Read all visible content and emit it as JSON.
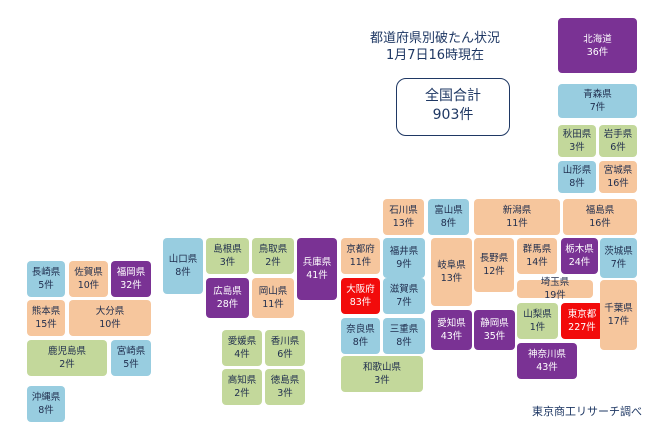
{
  "title_line1": "都道府県別破たん状況",
  "title_line2": "1月7日16時現在",
  "total_label": "全国合計",
  "total_value": "903件",
  "source": "東京商工リサーチ調べ",
  "tier_colors": {
    "tier1": "#98cde0",
    "tier2": "#c3d89b",
    "tier3": "#f6c69d",
    "tier4": "#7a3294",
    "tier5": "#f20b0b"
  },
  "prefectures": [
    {
      "name": "北海道",
      "count": "36件",
      "tier": "tier4"
    },
    {
      "name": "青森県",
      "count": "7件",
      "tier": "tier1"
    },
    {
      "name": "秋田県",
      "count": "3件",
      "tier": "tier2"
    },
    {
      "name": "岩手県",
      "count": "6件",
      "tier": "tier2"
    },
    {
      "name": "山形県",
      "count": "8件",
      "tier": "tier1"
    },
    {
      "name": "宮城県",
      "count": "16件",
      "tier": "tier3"
    },
    {
      "name": "福島県",
      "count": "16件",
      "tier": "tier3"
    },
    {
      "name": "新潟県",
      "count": "11件",
      "tier": "tier3"
    },
    {
      "name": "石川県",
      "count": "13件",
      "tier": "tier3"
    },
    {
      "name": "富山県",
      "count": "8件",
      "tier": "tier1"
    },
    {
      "name": "栃木県",
      "count": "24件",
      "tier": "tier4"
    },
    {
      "name": "茨城県",
      "count": "7件",
      "tier": "tier1"
    },
    {
      "name": "群馬県",
      "count": "14件",
      "tier": "tier3"
    },
    {
      "name": "埼玉県",
      "count": "19件",
      "tier": "tier3"
    },
    {
      "name": "長野県",
      "count": "12件",
      "tier": "tier3"
    },
    {
      "name": "岐阜県",
      "count": "13件",
      "tier": "tier3"
    },
    {
      "name": "福井県",
      "count": "9件",
      "tier": "tier1"
    },
    {
      "name": "京都府",
      "count": "11件",
      "tier": "tier3"
    },
    {
      "name": "兵庫県",
      "count": "41件",
      "tier": "tier4"
    },
    {
      "name": "島根県",
      "count": "3件",
      "tier": "tier2"
    },
    {
      "name": "鳥取県",
      "count": "2件",
      "tier": "tier2"
    },
    {
      "name": "山口県",
      "count": "8件",
      "tier": "tier1"
    },
    {
      "name": "広島県",
      "count": "28件",
      "tier": "tier4"
    },
    {
      "name": "岡山県",
      "count": "11件",
      "tier": "tier3"
    },
    {
      "name": "大阪府",
      "count": "83件",
      "tier": "tier5"
    },
    {
      "name": "滋賀県",
      "count": "7件",
      "tier": "tier1"
    },
    {
      "name": "山梨県",
      "count": "1件",
      "tier": "tier2"
    },
    {
      "name": "東京都",
      "count": "227件",
      "tier": "tier5"
    },
    {
      "name": "千葉県",
      "count": "17件",
      "tier": "tier3"
    },
    {
      "name": "奈良県",
      "count": "8件",
      "tier": "tier1"
    },
    {
      "name": "三重県",
      "count": "8件",
      "tier": "tier1"
    },
    {
      "name": "愛知県",
      "count": "43件",
      "tier": "tier4"
    },
    {
      "name": "静岡県",
      "count": "35件",
      "tier": "tier4"
    },
    {
      "name": "神奈川県",
      "count": "43件",
      "tier": "tier4"
    },
    {
      "name": "和歌山県",
      "count": "3件",
      "tier": "tier2"
    },
    {
      "name": "愛媛県",
      "count": "4件",
      "tier": "tier2"
    },
    {
      "name": "香川県",
      "count": "6件",
      "tier": "tier2"
    },
    {
      "name": "高知県",
      "count": "2件",
      "tier": "tier2"
    },
    {
      "name": "徳島県",
      "count": "3件",
      "tier": "tier2"
    },
    {
      "name": "長崎県",
      "count": "5件",
      "tier": "tier1"
    },
    {
      "name": "佐賀県",
      "count": "10件",
      "tier": "tier3"
    },
    {
      "name": "福岡県",
      "count": "32件",
      "tier": "tier4"
    },
    {
      "name": "熊本県",
      "count": "15件",
      "tier": "tier3"
    },
    {
      "name": "大分県",
      "count": "10件",
      "tier": "tier3"
    },
    {
      "name": "鹿児島県",
      "count": "2件",
      "tier": "tier2"
    },
    {
      "name": "宮崎県",
      "count": "5件",
      "tier": "tier1"
    },
    {
      "name": "沖縄県",
      "count": "8件",
      "tier": "tier1"
    }
  ]
}
